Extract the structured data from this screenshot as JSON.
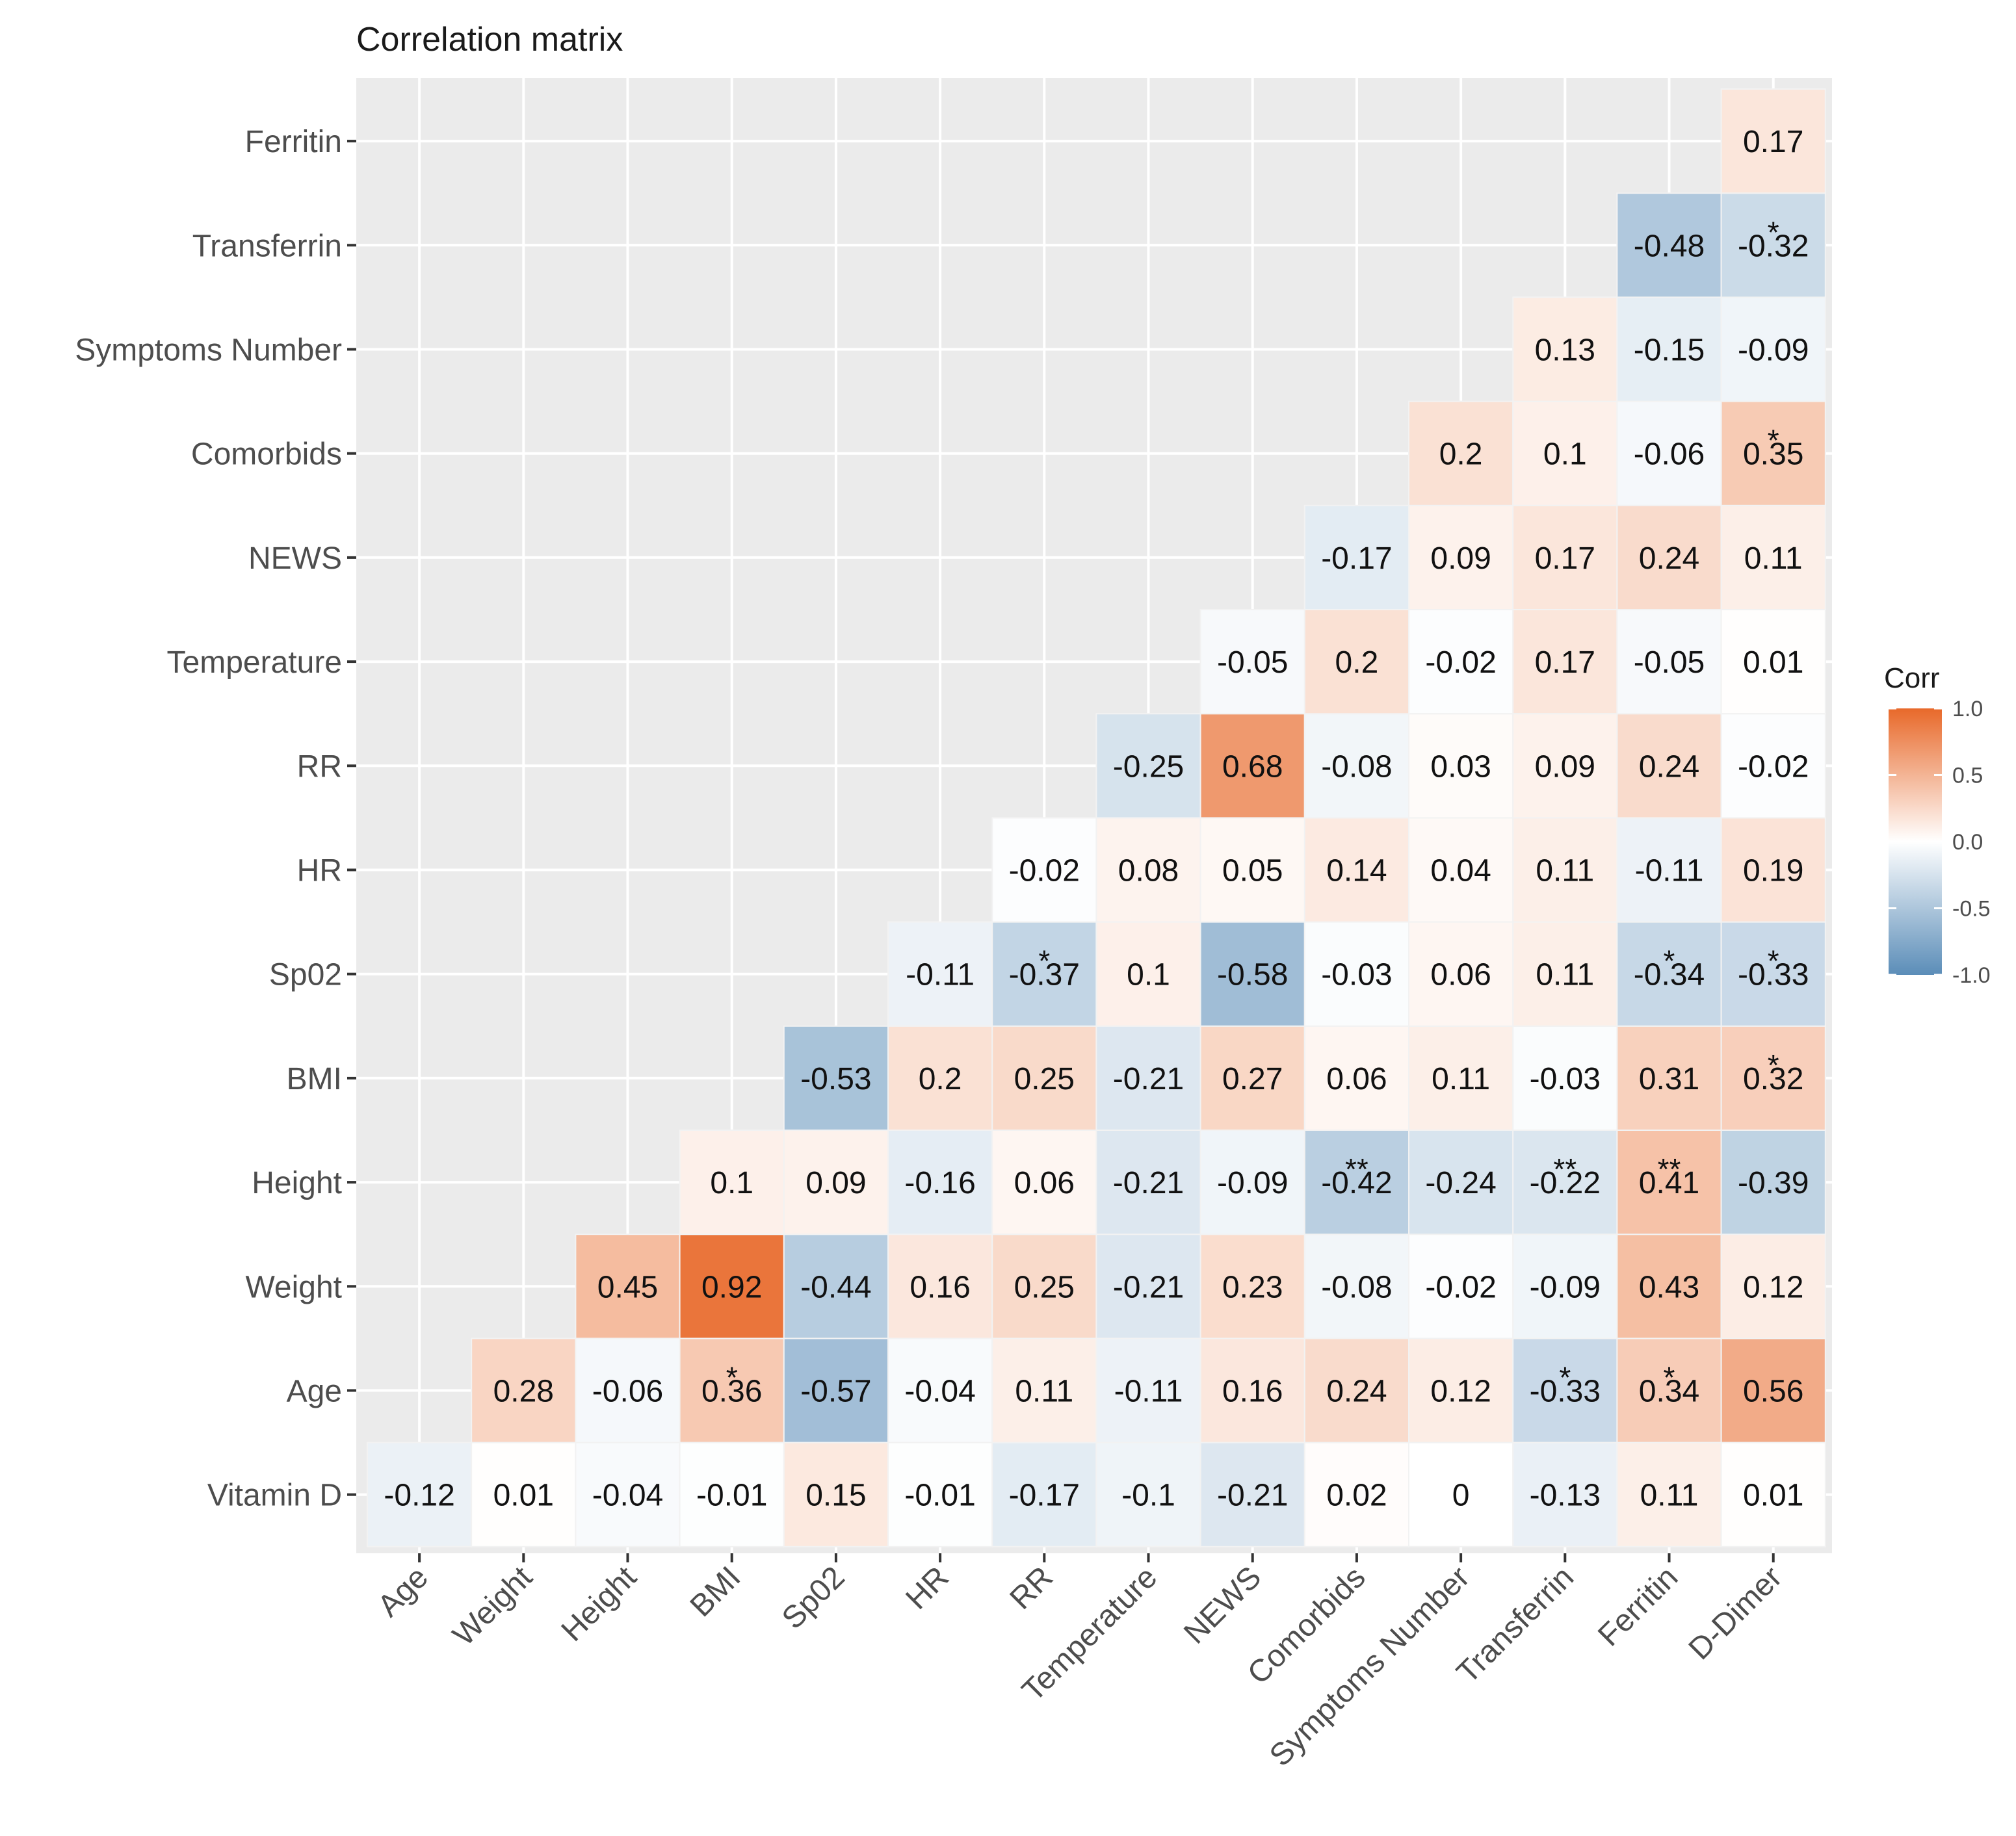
{
  "chart_data": {
    "type": "heatmap",
    "title": "Correlation matrix",
    "x_labels": [
      "Age",
      "Weight",
      "Height",
      "BMI",
      "Sp02",
      "HR",
      "RR",
      "Temperature",
      "NEWS",
      "Comorbids",
      "Symptoms Number",
      "Transferrin",
      "Ferritin",
      "D-Dimer"
    ],
    "y_labels": [
      "Vitamin D",
      "Age",
      "Weight",
      "Height",
      "BMI",
      "Sp02",
      "HR",
      "RR",
      "Temperature",
      "NEWS",
      "Comorbids",
      "Symptoms Number",
      "Transferrin",
      "Ferritin"
    ],
    "rows": [
      {
        "y": "Vitamin D",
        "values": [
          "-0.12",
          "0.01",
          "-0.04",
          "-0.01",
          "0.15",
          "-0.01",
          "-0.17",
          "-0.1",
          "-0.21",
          "0.02",
          "0",
          "-0.13",
          "0.11",
          "0.01"
        ],
        "stars": [
          "",
          "",
          "",
          "",
          "",
          "",
          "",
          "",
          "",
          "",
          "",
          "",
          "",
          ""
        ]
      },
      {
        "y": "Age",
        "values": [
          null,
          "0.28",
          "-0.06",
          "0.36",
          "-0.57",
          "-0.04",
          "0.11",
          "-0.11",
          "0.16",
          "0.24",
          "0.12",
          "-0.33",
          "0.34",
          "0.56"
        ],
        "stars": [
          "",
          "",
          "",
          "*",
          "",
          "",
          "",
          "",
          "",
          "",
          "",
          "*",
          "*",
          ""
        ]
      },
      {
        "y": "Weight",
        "values": [
          null,
          null,
          "0.45",
          "0.92",
          "-0.44",
          "0.16",
          "0.25",
          "-0.21",
          "0.23",
          "-0.08",
          "-0.02",
          "-0.09",
          "0.43",
          "0.12"
        ],
        "stars": [
          "",
          "",
          "",
          "",
          "",
          "",
          "",
          "",
          "",
          "",
          "",
          "",
          "",
          ""
        ]
      },
      {
        "y": "Height",
        "values": [
          null,
          null,
          null,
          "0.1",
          "0.09",
          "-0.16",
          "0.06",
          "-0.21",
          "-0.09",
          "-0.42",
          "-0.24",
          "-0.22",
          "0.41",
          "-0.39"
        ],
        "stars": [
          "",
          "",
          "",
          "",
          "",
          "",
          "",
          "",
          "",
          "**",
          "",
          "**",
          "**",
          ""
        ]
      },
      {
        "y": "BMI",
        "values": [
          null,
          null,
          null,
          null,
          "-0.53",
          "0.2",
          "0.25",
          "-0.21",
          "0.27",
          "0.06",
          "0.11",
          "-0.03",
          "0.31",
          "0.32"
        ],
        "stars": [
          "",
          "",
          "",
          "",
          "",
          "",
          "",
          "",
          "",
          "",
          "",
          "",
          "",
          "*"
        ]
      },
      {
        "y": "Sp02",
        "values": [
          null,
          null,
          null,
          null,
          null,
          "-0.11",
          "-0.37",
          "0.1",
          "-0.58",
          "-0.03",
          "0.06",
          "0.11",
          "-0.34",
          "-0.33"
        ],
        "stars": [
          "",
          "",
          "",
          "",
          "",
          "",
          "*",
          "",
          "",
          "",
          "",
          "",
          "*",
          "*"
        ]
      },
      {
        "y": "HR",
        "values": [
          null,
          null,
          null,
          null,
          null,
          null,
          "-0.02",
          "0.08",
          "0.05",
          "0.14",
          "0.04",
          "0.11",
          "-0.11",
          "0.19"
        ],
        "stars": [
          "",
          "",
          "",
          "",
          "",
          "",
          "",
          "",
          "",
          "",
          "",
          "",
          "",
          ""
        ]
      },
      {
        "y": "RR",
        "values": [
          null,
          null,
          null,
          null,
          null,
          null,
          null,
          "-0.25",
          "0.68",
          "-0.08",
          "0.03",
          "0.09",
          "0.24",
          "-0.02"
        ],
        "stars": [
          "",
          "",
          "",
          "",
          "",
          "",
          "",
          "",
          "",
          "",
          "",
          "",
          "",
          ""
        ]
      },
      {
        "y": "Temperature",
        "values": [
          null,
          null,
          null,
          null,
          null,
          null,
          null,
          null,
          "-0.05",
          "0.2",
          "-0.02",
          "0.17",
          "-0.05",
          "0.01"
        ],
        "stars": [
          "",
          "",
          "",
          "",
          "",
          "",
          "",
          "",
          "",
          "",
          "",
          "",
          "",
          ""
        ]
      },
      {
        "y": "NEWS",
        "values": [
          null,
          null,
          null,
          null,
          null,
          null,
          null,
          null,
          null,
          "-0.17",
          "0.09",
          "0.17",
          "0.24",
          "0.11"
        ],
        "stars": [
          "",
          "",
          "",
          "",
          "",
          "",
          "",
          "",
          "",
          "",
          "",
          "",
          "",
          ""
        ]
      },
      {
        "y": "Comorbids",
        "values": [
          null,
          null,
          null,
          null,
          null,
          null,
          null,
          null,
          null,
          null,
          "0.2",
          "0.1",
          "-0.06",
          "0.35"
        ],
        "stars": [
          "",
          "",
          "",
          "",
          "",
          "",
          "",
          "",
          "",
          "",
          "",
          "",
          "",
          "*"
        ]
      },
      {
        "y": "Symptoms Number",
        "values": [
          null,
          null,
          null,
          null,
          null,
          null,
          null,
          null,
          null,
          null,
          null,
          "0.13",
          "-0.15",
          "-0.09"
        ],
        "stars": [
          "",
          "",
          "",
          "",
          "",
          "",
          "",
          "",
          "",
          "",
          "",
          "",
          "",
          ""
        ]
      },
      {
        "y": "Transferrin",
        "values": [
          null,
          null,
          null,
          null,
          null,
          null,
          null,
          null,
          null,
          null,
          null,
          null,
          "-0.48",
          "-0.32"
        ],
        "stars": [
          "",
          "",
          "",
          "",
          "",
          "",
          "",
          "",
          "",
          "",
          "",
          "",
          "",
          "*"
        ]
      },
      {
        "y": "Ferritin",
        "values": [
          null,
          null,
          null,
          null,
          null,
          null,
          null,
          null,
          null,
          null,
          null,
          null,
          null,
          "0.17"
        ],
        "stars": [
          "",
          "",
          "",
          "",
          "",
          "",
          "",
          "",
          "",
          "",
          "",
          "",
          "",
          ""
        ]
      }
    ],
    "legend": {
      "title": "Corr",
      "ticks": [
        "1.0",
        "0.5",
        "0.0",
        "-0.5",
        "-1.0"
      ],
      "range": [
        -1,
        1
      ],
      "placement": "right"
    },
    "colors": {
      "negative": "#5b8db8",
      "neutral": "#ffffff",
      "positive": "#e8692a",
      "panel": "#ebebeb",
      "grid": "#ffffff"
    }
  }
}
